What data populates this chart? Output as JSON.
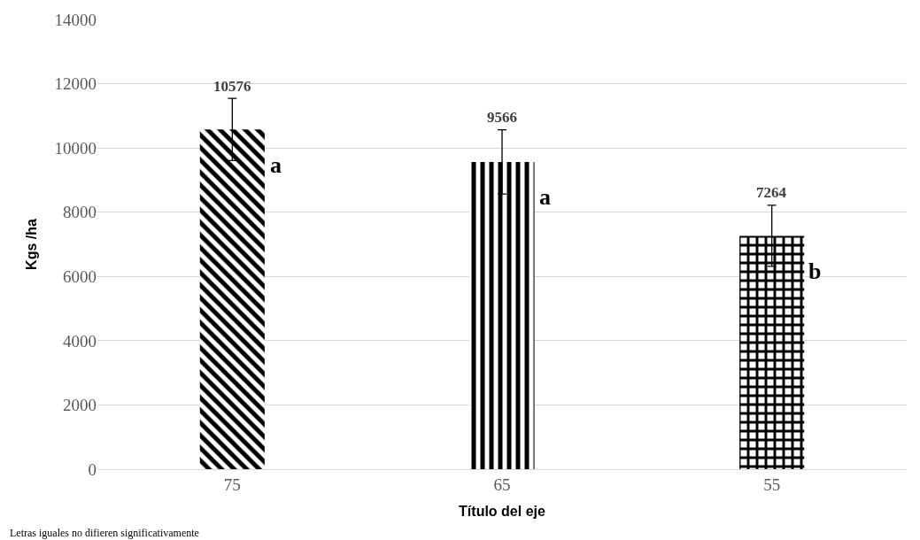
{
  "chart_data": {
    "type": "bar",
    "xlabel": "Título del eje",
    "ylabel": "Kgs /ha",
    "categories": [
      "75",
      "65",
      "55"
    ],
    "values": [
      10576,
      9566,
      7264
    ],
    "errors": [
      970,
      1000,
      950
    ],
    "colors": [
      "#000000",
      "#000000",
      "#000000"
    ],
    "data_labels": true,
    "ylim": [
      0,
      14000
    ],
    "yticks": [
      0,
      2000,
      4000,
      6000,
      8000,
      10000,
      12000,
      14000
    ],
    "grid": "y",
    "annotations": [
      "a",
      "a",
      "b",
      "Letras iguales no difieren significativamente"
    ]
  }
}
